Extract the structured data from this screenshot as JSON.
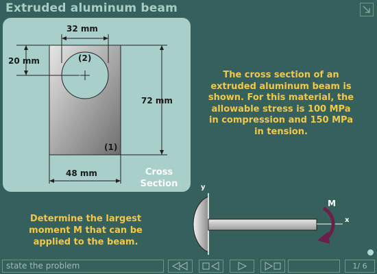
{
  "window": {
    "title": "Extruded aluminum beam"
  },
  "cross_section": {
    "dims": {
      "hole_diameter": "32 mm",
      "hole_offset": "20 mm",
      "height": "72 mm",
      "width": "48 mm"
    },
    "region_labels": {
      "hole": "(2)",
      "solid": "(1)"
    },
    "caption_line1": "Cross",
    "caption_line2": "Section"
  },
  "problem_text": "The cross section of an extruded aluminum beam is shown.  For this material, the allowable stress is 100 MPa in compression and 150 MPa in tension.",
  "question_text": "Determine the largest moment M that can be applied to the beam.",
  "beam_figure": {
    "axis_y": "y",
    "axis_x": "x",
    "moment": "M"
  },
  "nav": {
    "step_label": "state the problem",
    "page_current": "1",
    "page_sep": "/",
    "page_total": "6"
  },
  "colors": {
    "background": "#36605c",
    "panel": "#a8cfca",
    "accent_text": "#f2c84a",
    "moment_arrow": "#6b1f4a"
  }
}
